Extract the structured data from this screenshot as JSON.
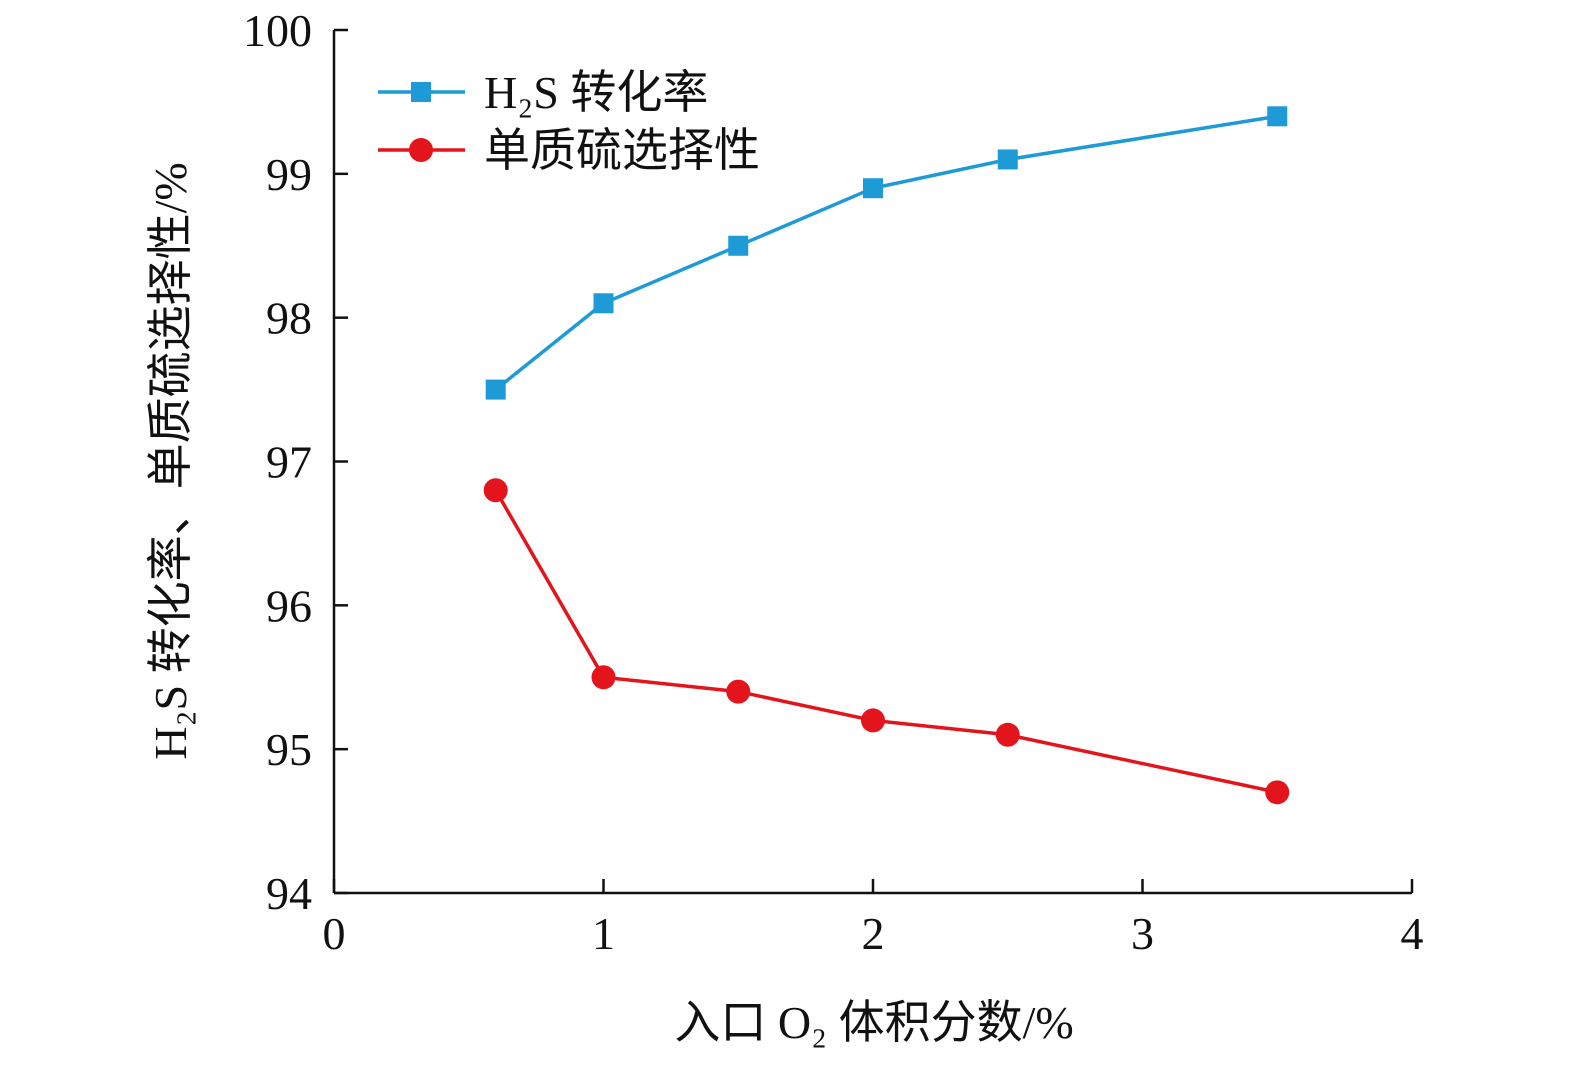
{
  "chart_data": {
    "type": "line",
    "x": [
      0.6,
      1,
      1.5,
      2,
      2.5,
      3.5
    ],
    "series": [
      {
        "name": "H₂S 转化率",
        "values": [
          97.5,
          98.1,
          98.5,
          98.9,
          99.1,
          99.4
        ],
        "color": "#1e9ad6",
        "marker": "square"
      },
      {
        "name": "单质硫选择性",
        "values": [
          96.8,
          95.5,
          95.4,
          95.2,
          95.1,
          94.7
        ],
        "color": "#e3141b",
        "marker": "circle"
      }
    ],
    "xlabel": "入口 O₂ 体积分数/%",
    "ylabel": "H₂S 转化率、单质硫选择性/%",
    "xlim": [
      0,
      4
    ],
    "ylim": [
      94,
      100
    ],
    "xticks": [
      "0",
      "1",
      "2",
      "3",
      "4"
    ],
    "yticks": [
      "94",
      "95",
      "96",
      "97",
      "98",
      "99",
      "100"
    ],
    "grid": false,
    "legend_position": "top-left"
  }
}
